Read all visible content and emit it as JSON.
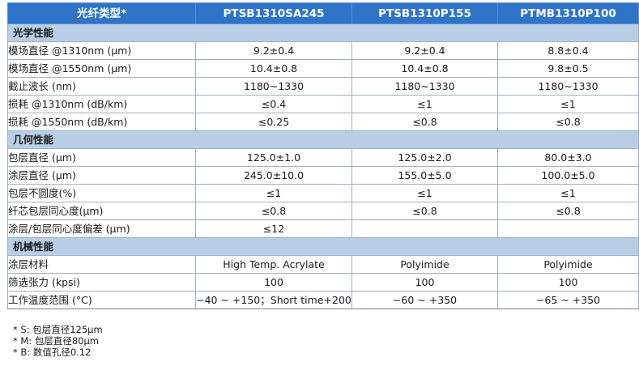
{
  "header": [
    "光纤类型*",
    "PTSB1310SA245",
    "PTSB1310P155",
    "PTMB1310P100"
  ],
  "sections": [
    {
      "title": "光学性能",
      "rows": [
        {
          "label": "模场直径 @1310nm (μm)",
          "values": [
            "9.2±0.4",
            "9.2±0.4",
            "8.8±0.4"
          ]
        },
        {
          "label": "模场直径 @1550nm (μm)",
          "values": [
            "10.4±0.8",
            "10.4±0.8",
            "9.8±0.5"
          ]
        },
        {
          "label": "截止波长 (nm)",
          "values": [
            "1180~1330",
            "1180~1330",
            "1180~1330"
          ]
        },
        {
          "label": "损耗 @1310nm (dB/km)",
          "values": [
            "≤0.4",
            "≤1",
            "≤1"
          ]
        },
        {
          "label": "损耗 @1550nm (dB/km)",
          "values": [
            "≤0.25",
            "≤0.8",
            "≤0.8"
          ]
        }
      ]
    },
    {
      "title": "几何性能",
      "rows": [
        {
          "label": "包层直径 (μm)",
          "values": [
            "125.0±1.0",
            "125.0±2.0",
            "80.0±3.0"
          ]
        },
        {
          "label": "涂层直径 (μm)",
          "values": [
            "245.0±10.0",
            "155.0±5.0",
            "100.0±5.0"
          ]
        },
        {
          "label": "包层不圆度(%)",
          "values": [
            "≤1",
            "≤1",
            "≤1"
          ]
        },
        {
          "label": "纤芯包层同心度(μm)",
          "values": [
            "≤0.8",
            "≤0.8",
            "≤0.8"
          ]
        },
        {
          "label": "涂层/包层同心度偏差 (μm)",
          "values": [
            "≤12",
            "",
            ""
          ]
        }
      ]
    },
    {
      "title": "机械性能",
      "rows": [
        {
          "label": "涂层材料",
          "values": [
            "High Temp. Acrylate",
            "Polyimide",
            "Polyimide"
          ]
        },
        {
          "label": "筛选张力 (kpsi)",
          "values": [
            "100",
            "100",
            "100"
          ]
        },
        {
          "label": "工作温度范围 (°C)",
          "values": [
            "−40 ~ +150；Short time+200",
            "−60 ~ +350",
            "−65 ~ +350"
          ]
        }
      ]
    }
  ],
  "notes": [
    "* S: 包层直径125μm",
    "* M: 包层直径80μm",
    "* B: 数值孔径0.12"
  ]
}
